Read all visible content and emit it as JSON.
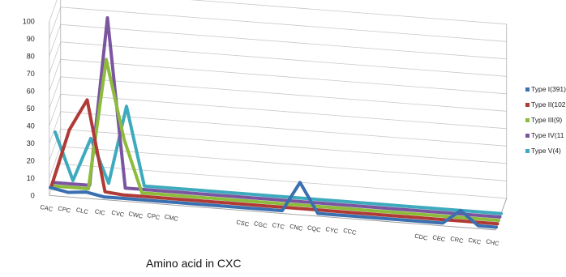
{
  "chart_data": {
    "type": "line",
    "xlabel": "Amino acid in CXC",
    "ylabel": "",
    "ylim": [
      0,
      100
    ],
    "yticks": [
      "0",
      "10",
      "20",
      "30",
      "40",
      "50",
      "60",
      "70",
      "80",
      "90",
      "100"
    ],
    "grid": true,
    "legend_position": "right",
    "categories": [
      "CAC",
      "CPC",
      "CLC",
      "CIC",
      "CVC",
      "CWC",
      "CPC",
      "CMC",
      "",
      "",
      "",
      "CSC",
      "CGC",
      "CTC",
      "CNC",
      "CQC",
      "CYC",
      "CCC",
      "",
      "",
      "",
      "CDC",
      "CEC",
      "CRC",
      "CKC",
      "CHC"
    ],
    "series": [
      {
        "name": "Type I(391)",
        "color": "#3a6fb0",
        "values": [
          3,
          1,
          2,
          0,
          0,
          0,
          0,
          0,
          0,
          0,
          0,
          0,
          0,
          0,
          17,
          0,
          0,
          0,
          0,
          0,
          0,
          0,
          0,
          8,
          0,
          0
        ]
      },
      {
        "name": "Type II(102",
        "color": "#b03a36",
        "values": [
          2,
          35,
          53,
          1,
          0,
          0,
          0,
          0,
          0,
          0,
          0,
          0,
          0,
          0,
          0,
          0,
          0,
          0,
          0,
          0,
          0,
          0,
          0,
          0,
          0,
          0
        ]
      },
      {
        "name": "Type III(9)",
        "color": "#8dbb3c",
        "values": [
          0,
          0,
          0,
          75,
          30,
          0,
          0,
          0,
          0,
          0,
          0,
          0,
          0,
          0,
          0,
          0,
          0,
          0,
          0,
          0,
          0,
          0,
          0,
          0,
          0,
          0
        ]
      },
      {
        "name": "Type IV(11",
        "color": "#7b55a0",
        "values": [
          0,
          0,
          0,
          97,
          0,
          0,
          0,
          0,
          0,
          0,
          0,
          0,
          0,
          0,
          0,
          0,
          0,
          0,
          0,
          0,
          0,
          0,
          0,
          0,
          0,
          0
        ]
      },
      {
        "name": "Type V(4)",
        "color": "#3eaabd",
        "values": [
          27,
          0,
          25,
          0,
          45,
          0,
          0,
          0,
          0,
          0,
          0,
          0,
          0,
          0,
          0,
          0,
          0,
          0,
          0,
          0,
          0,
          0,
          0,
          0,
          0,
          0
        ]
      }
    ]
  }
}
